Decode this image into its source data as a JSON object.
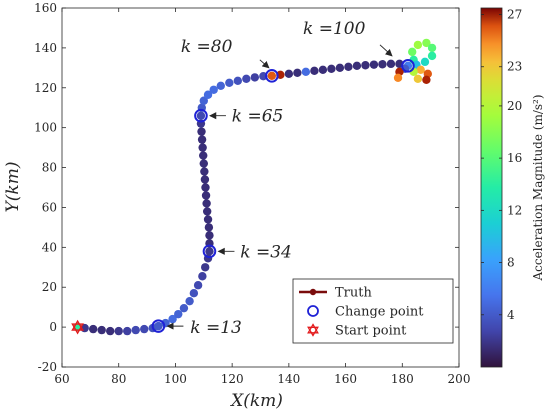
{
  "chart_data": {
    "type": "scatter",
    "xlabel": "X(km)",
    "ylabel": "Y(km)",
    "xlim": [
      60,
      200
    ],
    "ylim": [
      -20,
      160
    ],
    "xticks": [
      60,
      80,
      100,
      120,
      140,
      160,
      180,
      200
    ],
    "yticks": [
      -20,
      0,
      20,
      40,
      60,
      80,
      100,
      120,
      140,
      160
    ],
    "grid": false,
    "legend_position": "bottom-right",
    "legend": [
      {
        "label": "Truth",
        "style": "line-marker",
        "color": "#7a0c0c"
      },
      {
        "label": "Change point",
        "style": "circle",
        "color": "#1f22d6"
      },
      {
        "label": "Start point",
        "style": "hexagram",
        "color": "#e31a1c"
      }
    ],
    "colorbar": {
      "label": "Acceleration Magnitude (m/s²)",
      "ticks": [
        4,
        8,
        12,
        16,
        20,
        23,
        27
      ],
      "range": [
        0,
        27.5
      ],
      "colormap": "turbo"
    },
    "trajectory": [
      {
        "x": 65.5,
        "y": 0,
        "a": 14
      },
      {
        "x": 68,
        "y": -0.5,
        "a": 2
      },
      {
        "x": 71,
        "y": -1,
        "a": 1.5
      },
      {
        "x": 74,
        "y": -1.5,
        "a": 1.5
      },
      {
        "x": 77,
        "y": -2,
        "a": 1.5
      },
      {
        "x": 80,
        "y": -2,
        "a": 2
      },
      {
        "x": 83,
        "y": -2,
        "a": 2.5
      },
      {
        "x": 86,
        "y": -1.5,
        "a": 3
      },
      {
        "x": 89,
        "y": -1,
        "a": 3
      },
      {
        "x": 92,
        "y": -0.5,
        "a": 3.5
      },
      {
        "x": 94,
        "y": 0.5,
        "a": 4
      },
      {
        "x": 96.5,
        "y": 2,
        "a": 4.5
      },
      {
        "x": 99,
        "y": 4,
        "a": 5
      },
      {
        "x": 101,
        "y": 6.5,
        "a": 4.5
      },
      {
        "x": 103,
        "y": 9.5,
        "a": 4
      },
      {
        "x": 105,
        "y": 13,
        "a": 4
      },
      {
        "x": 106.5,
        "y": 17,
        "a": 3.5
      },
      {
        "x": 108,
        "y": 21,
        "a": 3
      },
      {
        "x": 109.5,
        "y": 25.5,
        "a": 2.5
      },
      {
        "x": 110.5,
        "y": 30,
        "a": 2
      },
      {
        "x": 111.5,
        "y": 34.5,
        "a": 2
      },
      {
        "x": 112,
        "y": 38,
        "a": 2
      },
      {
        "x": 112,
        "y": 42,
        "a": 1.5
      },
      {
        "x": 112,
        "y": 46,
        "a": 1.5
      },
      {
        "x": 111.8,
        "y": 50,
        "a": 1.5
      },
      {
        "x": 111.5,
        "y": 54,
        "a": 1.5
      },
      {
        "x": 111.2,
        "y": 58,
        "a": 1.5
      },
      {
        "x": 111,
        "y": 62,
        "a": 1.5
      },
      {
        "x": 110.8,
        "y": 66,
        "a": 1.5
      },
      {
        "x": 110.6,
        "y": 70,
        "a": 1.5
      },
      {
        "x": 110.4,
        "y": 74,
        "a": 1.5
      },
      {
        "x": 110.2,
        "y": 78,
        "a": 1.5
      },
      {
        "x": 110,
        "y": 82,
        "a": 1.5
      },
      {
        "x": 109.8,
        "y": 86,
        "a": 1.5
      },
      {
        "x": 109.6,
        "y": 90,
        "a": 1.5
      },
      {
        "x": 109.4,
        "y": 94,
        "a": 1.5
      },
      {
        "x": 109.2,
        "y": 98,
        "a": 1.5
      },
      {
        "x": 109,
        "y": 102,
        "a": 2
      },
      {
        "x": 109,
        "y": 106,
        "a": 3
      },
      {
        "x": 109.3,
        "y": 110,
        "a": 4
      },
      {
        "x": 110,
        "y": 113.5,
        "a": 4.5
      },
      {
        "x": 111.5,
        "y": 116.5,
        "a": 5
      },
      {
        "x": 113.5,
        "y": 119,
        "a": 5
      },
      {
        "x": 116,
        "y": 121,
        "a": 4.5
      },
      {
        "x": 119,
        "y": 122.5,
        "a": 4
      },
      {
        "x": 122,
        "y": 123.5,
        "a": 3.5
      },
      {
        "x": 125,
        "y": 124.5,
        "a": 3
      },
      {
        "x": 128,
        "y": 125.2,
        "a": 2.5
      },
      {
        "x": 131,
        "y": 125.8,
        "a": 3
      },
      {
        "x": 134,
        "y": 126,
        "a": 26
      },
      {
        "x": 137,
        "y": 126.5,
        "a": 27
      },
      {
        "x": 140,
        "y": 127,
        "a": 1.5
      },
      {
        "x": 143,
        "y": 127.5,
        "a": 1.5
      },
      {
        "x": 146,
        "y": 128,
        "a": 5
      },
      {
        "x": 149,
        "y": 128.5,
        "a": 1.5
      },
      {
        "x": 152,
        "y": 129,
        "a": 1.5
      },
      {
        "x": 155,
        "y": 129.5,
        "a": 1.5
      },
      {
        "x": 158,
        "y": 130,
        "a": 1.5
      },
      {
        "x": 161,
        "y": 130.5,
        "a": 1.5
      },
      {
        "x": 164,
        "y": 131,
        "a": 1.5
      },
      {
        "x": 167,
        "y": 131.3,
        "a": 1.5
      },
      {
        "x": 170,
        "y": 131.6,
        "a": 1.5
      },
      {
        "x": 173,
        "y": 131.8,
        "a": 1.5
      },
      {
        "x": 176,
        "y": 132,
        "a": 1.5
      },
      {
        "x": 179,
        "y": 132,
        "a": 1.5
      },
      {
        "x": 182,
        "y": 131,
        "a": 6
      },
      {
        "x": 184,
        "y": 134,
        "a": 14
      },
      {
        "x": 183.5,
        "y": 138,
        "a": 17
      },
      {
        "x": 185.5,
        "y": 141.5,
        "a": 19
      },
      {
        "x": 188.5,
        "y": 142.5,
        "a": 18
      },
      {
        "x": 190.5,
        "y": 140,
        "a": 16
      },
      {
        "x": 190.5,
        "y": 136,
        "a": 14
      },
      {
        "x": 188,
        "y": 133,
        "a": 12
      },
      {
        "x": 185,
        "y": 131.5,
        "a": 10
      },
      {
        "x": 186.5,
        "y": 129,
        "a": 24
      },
      {
        "x": 189,
        "y": 127,
        "a": 26
      },
      {
        "x": 188.5,
        "y": 124,
        "a": 27
      },
      {
        "x": 185.5,
        "y": 124.5,
        "a": 23
      },
      {
        "x": 184,
        "y": 128,
        "a": 20
      },
      {
        "x": 181,
        "y": 129.5,
        "a": 4
      },
      {
        "x": 179,
        "y": 128,
        "a": 27
      },
      {
        "x": 178.5,
        "y": 125,
        "a": 25
      }
    ],
    "change_points": [
      {
        "x": 94,
        "y": 0.5
      },
      {
        "x": 112,
        "y": 38
      },
      {
        "x": 109,
        "y": 106
      },
      {
        "x": 134,
        "y": 126
      },
      {
        "x": 182,
        "y": 131
      }
    ],
    "start_point": {
      "x": 65.5,
      "y": 0
    },
    "annotations": [
      {
        "text": "k =13",
        "x": 101,
        "y": 0
      },
      {
        "text": "k =34",
        "x": 119,
        "y": 38
      },
      {
        "text": "k =65",
        "x": 116,
        "y": 106
      },
      {
        "text": "k =80",
        "x": 111,
        "y": 141
      },
      {
        "text": "k =100",
        "x": 156,
        "y": 150
      }
    ]
  }
}
